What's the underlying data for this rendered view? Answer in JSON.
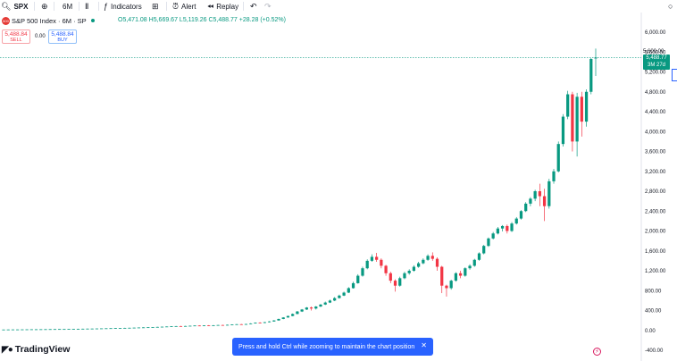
{
  "toolbar": {
    "symbol": "SPX",
    "interval": "6M",
    "indicators_label": "Indicators",
    "alert_label": "Alert",
    "replay_label": "Replay"
  },
  "legend": {
    "badge": "500",
    "title": "S&P 500 Index · 6M · SP",
    "open": "O5,471.08",
    "high": "H5,669.67",
    "low": "L5,119.26",
    "close": "C5,488.77",
    "change": "+28.28 (+0.52%)"
  },
  "trade": {
    "sell_price": "5,488.84",
    "sell_label": "SELL",
    "spread": "0.00",
    "buy_price": "5,488.84",
    "buy_label": "BUY"
  },
  "price_axis": {
    "current_price": "5,488.77",
    "countdown": "3M 27d",
    "high_tick": "5,600.00"
  },
  "toast": {
    "message": "Press and hold Ctrl while zooming to maintain the chart position"
  },
  "brand": {
    "name": "TradingView"
  },
  "colors": {
    "up": "#089981",
    "down": "#f23645",
    "accent": "#2962ff"
  },
  "chart_data": {
    "type": "candlestick",
    "ylim": [
      -400,
      6000
    ],
    "y_ticks": [
      -400,
      0,
      400,
      800,
      1200,
      1600,
      2000,
      2400,
      2800,
      3200,
      3600,
      4000,
      4400,
      4800,
      5200,
      5600,
      6000
    ],
    "tick_labels": [
      "-400.00",
      "0.00",
      "400.00",
      "800.00",
      "1,200.00",
      "1,600.00",
      "2,000.00",
      "2,400.00",
      "2,800.00",
      "3,200.00",
      "3,600.00",
      "4,000.00",
      "4,400.00",
      "4,800.00",
      "5,200.00",
      "5,600.00",
      "6,000.00"
    ],
    "current_price": 5488.77,
    "candles": [
      [
        17,
        17,
        19,
        16
      ],
      [
        17,
        18,
        19,
        16
      ],
      [
        18,
        19,
        20,
        17
      ],
      [
        19,
        19,
        21,
        18
      ],
      [
        19,
        20,
        21,
        18
      ],
      [
        20,
        21,
        22,
        19
      ],
      [
        21,
        22,
        23,
        20
      ],
      [
        22,
        22,
        24,
        21
      ],
      [
        22,
        23,
        24,
        21
      ],
      [
        23,
        24,
        25,
        22
      ],
      [
        24,
        25,
        26,
        23
      ],
      [
        25,
        26,
        27,
        24
      ],
      [
        26,
        27,
        28,
        25
      ],
      [
        27,
        27,
        29,
        26
      ],
      [
        27,
        28,
        29,
        26
      ],
      [
        28,
        30,
        31,
        27
      ],
      [
        30,
        31,
        33,
        29
      ],
      [
        31,
        33,
        34,
        30
      ],
      [
        33,
        35,
        36,
        32
      ],
      [
        35,
        36,
        38,
        34
      ],
      [
        36,
        38,
        39,
        35
      ],
      [
        38,
        40,
        41,
        37
      ],
      [
        40,
        42,
        43,
        39
      ],
      [
        42,
        44,
        46,
        41
      ],
      [
        44,
        46,
        48,
        43
      ],
      [
        46,
        48,
        50,
        45
      ],
      [
        48,
        50,
        52,
        47
      ],
      [
        50,
        52,
        54,
        49
      ],
      [
        52,
        55,
        56,
        51
      ],
      [
        55,
        58,
        59,
        54
      ],
      [
        58,
        60,
        62,
        57
      ],
      [
        60,
        63,
        65,
        59
      ],
      [
        63,
        66,
        68,
        62
      ],
      [
        66,
        70,
        72,
        65
      ],
      [
        70,
        74,
        76,
        69
      ],
      [
        74,
        78,
        80,
        72
      ],
      [
        78,
        82,
        85,
        76
      ],
      [
        82,
        86,
        89,
        80
      ],
      [
        86,
        84,
        92,
        80
      ],
      [
        84,
        88,
        92,
        82
      ],
      [
        88,
        93,
        96,
        86
      ],
      [
        93,
        98,
        101,
        91
      ],
      [
        98,
        95,
        104,
        90
      ],
      [
        95,
        100,
        104,
        93
      ],
      [
        100,
        98,
        106,
        94
      ],
      [
        98,
        103,
        107,
        96
      ],
      [
        103,
        108,
        111,
        101
      ],
      [
        108,
        104,
        113,
        100
      ],
      [
        104,
        112,
        116,
        102
      ],
      [
        112,
        118,
        122,
        110
      ],
      [
        118,
        124,
        128,
        115
      ],
      [
        124,
        118,
        130,
        112
      ],
      [
        118,
        128,
        132,
        115
      ],
      [
        128,
        140,
        145,
        125
      ],
      [
        140,
        155,
        160,
        136
      ],
      [
        155,
        150,
        165,
        145
      ],
      [
        150,
        165,
        170,
        146
      ],
      [
        165,
        180,
        186,
        160
      ],
      [
        180,
        200,
        206,
        176
      ],
      [
        200,
        230,
        236,
        196
      ],
      [
        230,
        260,
        266,
        225
      ],
      [
        260,
        290,
        296,
        255
      ],
      [
        290,
        330,
        340,
        285
      ],
      [
        330,
        380,
        390,
        325
      ],
      [
        380,
        420,
        430,
        370
      ],
      [
        420,
        460,
        470,
        410
      ],
      [
        460,
        440,
        480,
        400
      ],
      [
        440,
        480,
        490,
        420
      ],
      [
        480,
        520,
        530,
        470
      ],
      [
        520,
        560,
        580,
        510
      ],
      [
        560,
        600,
        620,
        550
      ],
      [
        600,
        650,
        670,
        590
      ],
      [
        650,
        700,
        720,
        640
      ],
      [
        700,
        760,
        780,
        690
      ],
      [
        760,
        850,
        870,
        750
      ],
      [
        850,
        950,
        980,
        840
      ],
      [
        950,
        1100,
        1130,
        940
      ],
      [
        1100,
        1250,
        1280,
        1080
      ],
      [
        1250,
        1400,
        1430,
        1230
      ],
      [
        1400,
        1480,
        1530,
        1380
      ],
      [
        1480,
        1420,
        1560,
        1380
      ],
      [
        1420,
        1300,
        1450,
        1250
      ],
      [
        1300,
        1150,
        1320,
        1100
      ],
      [
        1150,
        1000,
        1180,
        950
      ],
      [
        1000,
        900,
        1030,
        780
      ],
      [
        900,
        1050,
        1080,
        880
      ],
      [
        1050,
        1150,
        1180,
        1030
      ],
      [
        1150,
        1200,
        1230,
        1120
      ],
      [
        1200,
        1280,
        1310,
        1180
      ],
      [
        1280,
        1350,
        1380,
        1260
      ],
      [
        1350,
        1420,
        1450,
        1330
      ],
      [
        1420,
        1500,
        1530,
        1400
      ],
      [
        1500,
        1440,
        1570,
        1400
      ],
      [
        1440,
        1280,
        1470,
        1200
      ],
      [
        1280,
        900,
        1300,
        750
      ],
      [
        900,
        850,
        920,
        680
      ],
      [
        850,
        1000,
        1020,
        820
      ],
      [
        1000,
        1150,
        1170,
        980
      ],
      [
        1150,
        1100,
        1200,
        1050
      ],
      [
        1100,
        1250,
        1270,
        1080
      ],
      [
        1250,
        1300,
        1330,
        1220
      ],
      [
        1300,
        1420,
        1440,
        1280
      ],
      [
        1420,
        1550,
        1570,
        1400
      ],
      [
        1550,
        1700,
        1720,
        1530
      ],
      [
        1700,
        1850,
        1870,
        1680
      ],
      [
        1850,
        1950,
        1980,
        1830
      ],
      [
        1950,
        2050,
        2080,
        1930
      ],
      [
        2050,
        2100,
        2120,
        1990
      ],
      [
        2100,
        2000,
        2130,
        1950
      ],
      [
        2000,
        2150,
        2180,
        1980
      ],
      [
        2150,
        2250,
        2280,
        2130
      ],
      [
        2250,
        2400,
        2420,
        2230
      ],
      [
        2400,
        2550,
        2580,
        2380
      ],
      [
        2550,
        2650,
        2680,
        2500
      ],
      [
        2650,
        2800,
        2830,
        2600
      ],
      [
        2800,
        2700,
        2950,
        2500
      ],
      [
        2700,
        2500,
        2850,
        2200
      ],
      [
        2500,
        3000,
        3050,
        2450
      ],
      [
        3000,
        3200,
        3250,
        2950
      ],
      [
        3200,
        3750,
        3800,
        3180
      ],
      [
        3750,
        4300,
        4350,
        3700
      ],
      [
        4300,
        4750,
        4820,
        4250
      ],
      [
        4750,
        3800,
        4800,
        3600
      ],
      [
        3800,
        4700,
        4780,
        3500
      ],
      [
        4700,
        4200,
        4800,
        3900
      ],
      [
        4200,
        4800,
        4850,
        4100
      ],
      [
        4800,
        5460,
        5480,
        4750
      ],
      [
        5471,
        5489,
        5670,
        5119
      ]
    ]
  }
}
